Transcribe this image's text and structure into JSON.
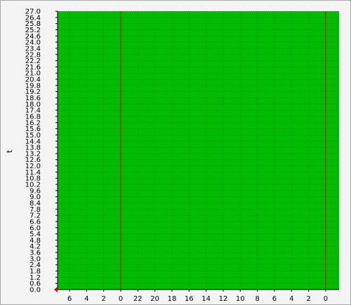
{
  "chart_data": {
    "type": "area",
    "title": "",
    "ylabel": "t",
    "xlabel": "",
    "ylim": [
      0.0,
      27.0
    ],
    "y_ticks": [
      "0.0",
      "0.6",
      "1.2",
      "1.8",
      "2.4",
      "3.0",
      "3.6",
      "4.2",
      "4.8",
      "5.4",
      "6.0",
      "6.6",
      "7.2",
      "7.8",
      "8.4",
      "9.0",
      "9.6",
      "10.2",
      "10.8",
      "11.4",
      "12.0",
      "12.6",
      "13.2",
      "13.8",
      "14.4",
      "15.0",
      "15.6",
      "16.2",
      "16.8",
      "17.4",
      "18.0",
      "18.6",
      "19.2",
      "19.8",
      "20.4",
      "21.0",
      "21.6",
      "22.2",
      "22.8",
      "23.4",
      "24.0",
      "24.6",
      "25.2",
      "25.8",
      "26.4",
      "27.0"
    ],
    "x_ticks": [
      "6",
      "4",
      "2",
      "0",
      "22",
      "20",
      "18",
      "16",
      "14",
      "12",
      "10",
      "8",
      "6",
      "4",
      "2",
      "0"
    ],
    "vertical_markers": [
      "0",
      "0"
    ],
    "series": [
      {
        "values": [
          27.0
        ]
      }
    ],
    "grid": true,
    "colors": {
      "fill": "#00bb00",
      "grid": "#1f6f1f",
      "marker": "#dd0000",
      "axis": "#000000",
      "background": "#f4f4f4"
    }
  }
}
